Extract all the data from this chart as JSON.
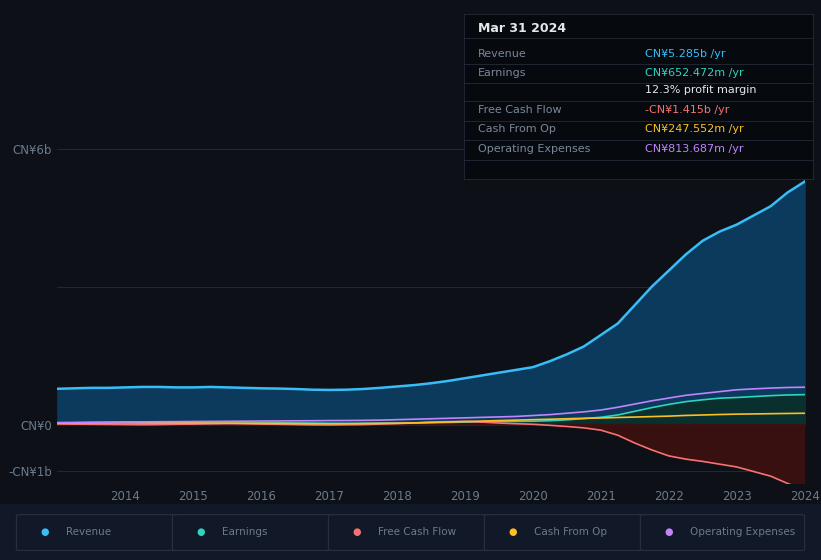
{
  "bg_color": "#0d1117",
  "plot_bg_color": "#111827",
  "tooltip": {
    "date": "Mar 31 2024",
    "rows": [
      {
        "label": "Revenue",
        "value": "CN¥5.285b /yr",
        "val_color": "#38bdf8"
      },
      {
        "label": "Earnings",
        "value": "CN¥652.472m /yr",
        "val_color": "#2dd4bf"
      },
      {
        "label": "",
        "value": "12.3% profit margin",
        "val_color": "#e5e7eb"
      },
      {
        "label": "Free Cash Flow",
        "value": "-CN¥1.415b /yr",
        "val_color": "#f87171"
      },
      {
        "label": "Cash From Op",
        "value": "CN¥247.552m /yr",
        "val_color": "#fbbf24"
      },
      {
        "label": "Operating Expenses",
        "value": "CN¥813.687m /yr",
        "val_color": "#c084fc"
      }
    ]
  },
  "ylim_lo": -1300000000.0,
  "ylim_hi": 6800000000.0,
  "years": [
    2013.0,
    2013.25,
    2013.5,
    2013.75,
    2014.0,
    2014.25,
    2014.5,
    2014.75,
    2015.0,
    2015.25,
    2015.5,
    2015.75,
    2016.0,
    2016.25,
    2016.5,
    2016.75,
    2017.0,
    2017.25,
    2017.5,
    2017.75,
    2018.0,
    2018.25,
    2018.5,
    2018.75,
    2019.0,
    2019.25,
    2019.5,
    2019.75,
    2020.0,
    2020.25,
    2020.5,
    2020.75,
    2021.0,
    2021.25,
    2021.5,
    2021.75,
    2022.0,
    2022.25,
    2022.5,
    2022.75,
    2023.0,
    2023.25,
    2023.5,
    2023.75,
    2024.0
  ],
  "revenue": [
    780000000.0,
    790000000.0,
    800000000.0,
    800000000.0,
    810000000.0,
    820000000.0,
    820000000.0,
    810000000.0,
    810000000.0,
    820000000.0,
    810000000.0,
    800000000.0,
    790000000.0,
    785000000.0,
    775000000.0,
    760000000.0,
    755000000.0,
    760000000.0,
    775000000.0,
    800000000.0,
    830000000.0,
    860000000.0,
    900000000.0,
    950000000.0,
    1010000000.0,
    1070000000.0,
    1130000000.0,
    1190000000.0,
    1250000000.0,
    1380000000.0,
    1530000000.0,
    1700000000.0,
    1950000000.0,
    2200000000.0,
    2600000000.0,
    3000000000.0,
    3350000000.0,
    3700000000.0,
    4000000000.0,
    4200000000.0,
    4350000000.0,
    4550000000.0,
    4750000000.0,
    5050000000.0,
    5285000000.0
  ],
  "earnings": [
    25000000.0,
    27000000.0,
    30000000.0,
    32000000.0,
    35000000.0,
    33000000.0,
    30000000.0,
    28000000.0,
    25000000.0,
    27000000.0,
    30000000.0,
    32000000.0,
    35000000.0,
    37000000.0,
    35000000.0,
    32000000.0,
    28000000.0,
    25000000.0,
    28000000.0,
    32000000.0,
    35000000.0,
    38000000.0,
    42000000.0,
    48000000.0,
    55000000.0,
    60000000.0,
    65000000.0,
    70000000.0,
    75000000.0,
    85000000.0,
    105000000.0,
    130000000.0,
    160000000.0,
    210000000.0,
    290000000.0,
    370000000.0,
    440000000.0,
    500000000.0,
    540000000.0,
    575000000.0,
    590000000.0,
    610000000.0,
    630000000.0,
    645000000.0,
    652000000.0
  ],
  "free_cash_flow": [
    15000000.0,
    10000000.0,
    8000000.0,
    5000000.0,
    2000000.0,
    -2000000.0,
    2000000.0,
    8000000.0,
    12000000.0,
    18000000.0,
    22000000.0,
    18000000.0,
    12000000.0,
    8000000.0,
    2000000.0,
    -5000000.0,
    -8000000.0,
    -3000000.0,
    2000000.0,
    12000000.0,
    22000000.0,
    35000000.0,
    55000000.0,
    65000000.0,
    70000000.0,
    55000000.0,
    35000000.0,
    20000000.0,
    8000000.0,
    -15000000.0,
    -40000000.0,
    -70000000.0,
    -120000000.0,
    -230000000.0,
    -400000000.0,
    -550000000.0,
    -680000000.0,
    -750000000.0,
    -800000000.0,
    -860000000.0,
    -920000000.0,
    -1020000000.0,
    -1120000000.0,
    -1280000000.0,
    -1415000000.0
  ],
  "cash_from_op": [
    38000000.0,
    40000000.0,
    43000000.0,
    46000000.0,
    48000000.0,
    46000000.0,
    43000000.0,
    40000000.0,
    38000000.0,
    36000000.0,
    33000000.0,
    30000000.0,
    28000000.0,
    26000000.0,
    23000000.0,
    20000000.0,
    18000000.0,
    20000000.0,
    23000000.0,
    27000000.0,
    30000000.0,
    38000000.0,
    48000000.0,
    58000000.0,
    68000000.0,
    78000000.0,
    88000000.0,
    98000000.0,
    108000000.0,
    118000000.0,
    128000000.0,
    138000000.0,
    145000000.0,
    155000000.0,
    165000000.0,
    175000000.0,
    185000000.0,
    200000000.0,
    210000000.0,
    220000000.0,
    228000000.0,
    233000000.0,
    238000000.0,
    243000000.0,
    247500000.0
  ],
  "operating_expenses": [
    45000000.0,
    48000000.0,
    52000000.0,
    55000000.0,
    58000000.0,
    60000000.0,
    63000000.0,
    65000000.0,
    68000000.0,
    70000000.0,
    73000000.0,
    75000000.0,
    78000000.0,
    80000000.0,
    83000000.0,
    85000000.0,
    88000000.0,
    90000000.0,
    93000000.0,
    98000000.0,
    108000000.0,
    118000000.0,
    128000000.0,
    138000000.0,
    148000000.0,
    158000000.0,
    168000000.0,
    178000000.0,
    198000000.0,
    218000000.0,
    248000000.0,
    278000000.0,
    318000000.0,
    378000000.0,
    448000000.0,
    518000000.0,
    578000000.0,
    638000000.0,
    678000000.0,
    718000000.0,
    758000000.0,
    778000000.0,
    795000000.0,
    808000000.0,
    813700000.0
  ],
  "revenue_color": "#38bdf8",
  "revenue_fill": "#0c3a5c",
  "earnings_color": "#2dd4bf",
  "earnings_fill": "#0a2e2a",
  "fcf_color": "#f87171",
  "fcf_fill": "#3d1010",
  "cashop_color": "#fbbf24",
  "opex_color": "#c084fc",
  "grid_color": "#1f2937",
  "text_color": "#6b7a8d",
  "legend": [
    {
      "label": "Revenue",
      "color": "#38bdf8"
    },
    {
      "label": "Earnings",
      "color": "#2dd4bf"
    },
    {
      "label": "Free Cash Flow",
      "color": "#f87171"
    },
    {
      "label": "Cash From Op",
      "color": "#fbbf24"
    },
    {
      "label": "Operating Expenses",
      "color": "#c084fc"
    }
  ]
}
